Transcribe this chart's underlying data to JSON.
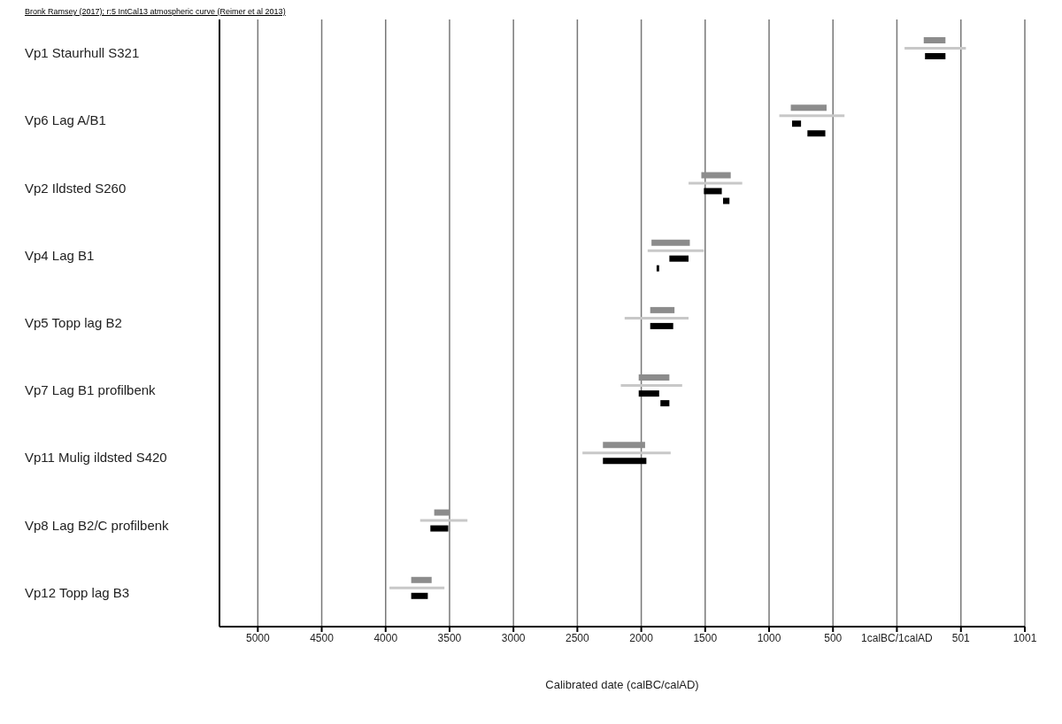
{
  "chart_data": {
    "type": "bar",
    "orientation": "horizontal",
    "title": "Bronk Ramsey (2017); r:5 IntCal13 atmospheric curve (Reimer et al 2013)",
    "xlabel": "Calibrated date (calBC/calAD)",
    "categories": [
      "Vp1 Staurhull S321",
      "Vp6 Lag A/B1",
      "Vp2 Ildsted S260",
      "Vp4 Lag B1",
      "Vp5 Topp lag B2",
      "Vp7 Lag B1 profilbenk",
      "Vp11 Mulig ildsted S420",
      "Vp8 Lag B2/C profilbenk",
      "Vp12 Topp lag B3"
    ],
    "series": [
      {
        "color": "#8c8c8c",
        "base": [
          210,
          -830,
          -1530,
          -1920,
          -1930,
          -2020,
          -2300,
          -3620,
          -3800
        ],
        "values": [
          170,
          280,
          230,
          300,
          190,
          240,
          330,
          120,
          160
        ]
      },
      {
        "color": "#c8c8c8",
        "base": [
          60,
          -920,
          -1630,
          -1950,
          -2130,
          -2160,
          -2460,
          -3730,
          -3970
        ],
        "values": [
          480,
          510,
          420,
          440,
          500,
          480,
          690,
          370,
          430
        ]
      },
      {
        "color": "#000000",
        "base": [
          220,
          -820,
          -1510,
          -1780,
          -1930,
          -2020,
          -2300,
          -3650,
          -3800
        ],
        "values": [
          160,
          70,
          140,
          150,
          180,
          160,
          340,
          140,
          130
        ]
      },
      {
        "color": "#000000",
        "base": [
          null,
          -700,
          -1360,
          -1880,
          null,
          -1850,
          null,
          null,
          null
        ],
        "values": [
          null,
          140,
          50,
          20,
          null,
          70,
          null,
          null,
          null
        ]
      }
    ],
    "xlim": [
      -5300,
      1001
    ],
    "xticks": [
      {
        "value": -5000,
        "label": "5000"
      },
      {
        "value": -4500,
        "label": "4500"
      },
      {
        "value": -4000,
        "label": "4000"
      },
      {
        "value": -3500,
        "label": "3500"
      },
      {
        "value": -3000,
        "label": "3000"
      },
      {
        "value": -2500,
        "label": "2500"
      },
      {
        "value": -2000,
        "label": "2000"
      },
      {
        "value": -1500,
        "label": "1500"
      },
      {
        "value": -1000,
        "label": "1000"
      },
      {
        "value": -500,
        "label": "500"
      },
      {
        "value": 0,
        "label": "1calBC/1calAD"
      },
      501,
      1001
    ],
    "grid": "x"
  }
}
